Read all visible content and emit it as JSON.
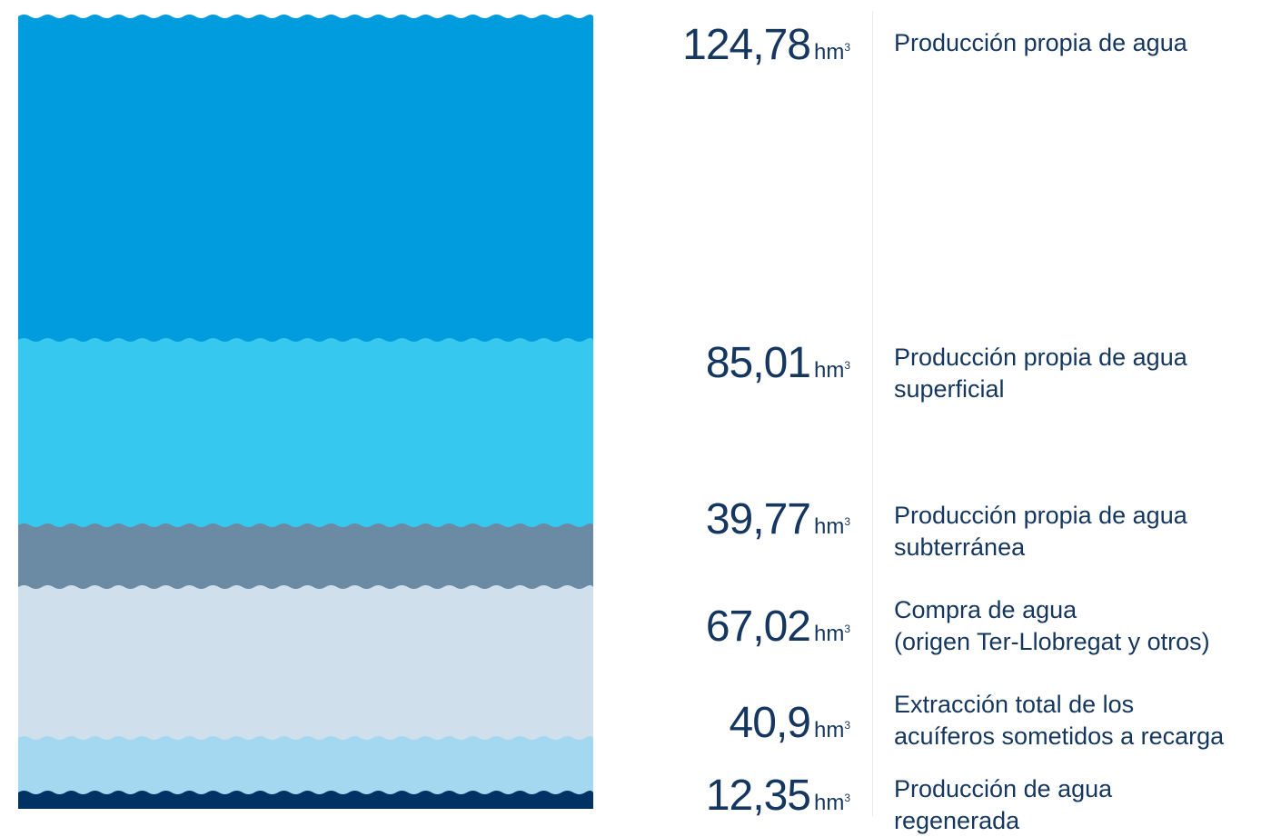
{
  "unit": "hm",
  "unit_sup": "3",
  "colors": {
    "text": "#14365f",
    "layers": [
      "#009cde",
      "#36c8ee",
      "#6b8aa3",
      "#cfe0ec",
      "#a3d8f0",
      "#003363"
    ]
  },
  "chart_data": {
    "type": "bar",
    "orientation": "stacked-layers",
    "categories": [
      "Producción propia de agua",
      "Producción propia de agua superficial",
      "Producción propia de agua subterránea",
      "Compra de agua (origen Ter-Llobregat y otros)",
      "Extracción total de los acuíferos sometidos a recarga",
      "Producción de agua regenerada"
    ],
    "values": [
      124.78,
      85.01,
      39.77,
      67.02,
      40.9,
      12.35
    ],
    "display_values": [
      "124,78",
      "85,01",
      "39,77",
      "67,02",
      "40,9",
      "12,35"
    ],
    "label_lines": [
      [
        "Producción propia de agua"
      ],
      [
        "Producción propia de agua",
        "superficial"
      ],
      [
        "Producción propia de agua",
        "subterránea"
      ],
      [
        "Compra de agua",
        "(origen Ter-Llobregat y otros)"
      ],
      [
        "Extracción total de los",
        "acuíferos sometidos a recarga"
      ],
      [
        "Producción de agua",
        "regenerada"
      ]
    ]
  }
}
